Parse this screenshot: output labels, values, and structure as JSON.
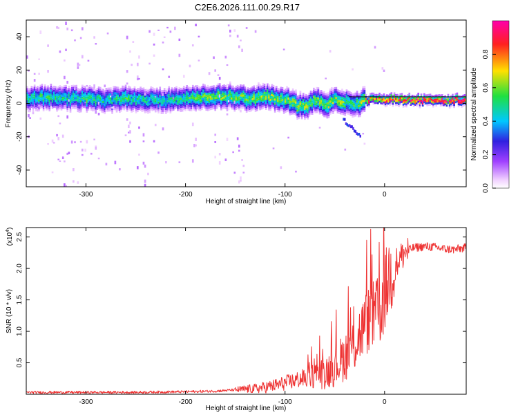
{
  "figure_title": "C2E6.2026.111.00.29.R17",
  "chart_data": [
    {
      "type": "heatmap",
      "title": "",
      "xlabel": "Height of straight line (km)",
      "ylabel": "Frequency (Hz)",
      "xlim": [
        -360,
        82
      ],
      "ylim": [
        -50,
        50
      ],
      "x_ticks": [
        -300,
        -200,
        -100,
        0
      ],
      "x_tick_labels": [
        "-300",
        "-200",
        "-100",
        "0"
      ],
      "y_ticks": [
        -40,
        -20,
        0,
        20,
        40
      ],
      "y_tick_labels": [
        "-40",
        "-20",
        "0",
        "20",
        "40"
      ],
      "colorbar": {
        "label": "Normalized spectral amplitude",
        "range": [
          0.0,
          1.0
        ],
        "ticks": [
          0.0,
          0.2,
          0.4,
          0.6,
          0.8
        ],
        "tick_labels": [
          "0.0",
          "0.2",
          "0.4",
          "0.6",
          "0.8"
        ],
        "colormap": [
          "#ffffff",
          "#f0d0ff",
          "#a040ff",
          "#3020e0",
          "#00c8ff",
          "#20e040",
          "#ffe000",
          "#ff2020",
          "#ff00aa"
        ]
      },
      "ridge_x": [
        -360,
        -340,
        -320,
        -300,
        -280,
        -260,
        -240,
        -220,
        -200,
        -180,
        -160,
        -140,
        -120,
        -110,
        -100,
        -90,
        -80,
        -70,
        -60,
        -50,
        -40,
        -30,
        -20,
        -10,
        0,
        5,
        10,
        20,
        40,
        60,
        82
      ],
      "ridge_freq": [
        3,
        4,
        3,
        3,
        2,
        3,
        2,
        2,
        3,
        4,
        4,
        3,
        4,
        3,
        2,
        -1,
        -2,
        3,
        -2,
        2,
        1,
        -1,
        2,
        2,
        2,
        4,
        2,
        2,
        2,
        2,
        2
      ],
      "ridge_amplitude": [
        0.45,
        0.5,
        0.45,
        0.5,
        0.45,
        0.5,
        0.45,
        0.45,
        0.5,
        0.55,
        0.55,
        0.55,
        0.6,
        0.55,
        0.55,
        0.6,
        0.6,
        0.55,
        0.6,
        0.6,
        0.55,
        0.5,
        0.7,
        0.75,
        0.8,
        0.8,
        0.85,
        0.85,
        0.85,
        0.85,
        0.85
      ]
    },
    {
      "type": "line",
      "title": "",
      "xlabel": "Height of straight line (km)",
      "ylabel": "SNR (10 * v/v)",
      "multiplier_label": "(x10",
      "multiplier_exponent": "4",
      "xlim": [
        -360,
        82
      ],
      "ylim": [
        0,
        2.65
      ],
      "x_ticks": [
        -300,
        -200,
        -100,
        0
      ],
      "x_tick_labels": [
        "-300",
        "-200",
        "-100",
        "0"
      ],
      "y_ticks": [
        0.5,
        1.0,
        1.5,
        2.0,
        2.5
      ],
      "y_tick_labels": [
        "0.5",
        "1.0",
        "1.5",
        "2.0",
        "2.5"
      ],
      "series": [
        {
          "name": "SNR",
          "color": "#ee3333",
          "x": [
            -360,
            -300,
            -250,
            -200,
            -170,
            -150,
            -130,
            -120,
            -110,
            -100,
            -90,
            -80,
            -70,
            -60,
            -50,
            -40,
            -30,
            -25,
            -20,
            -15,
            -10,
            -5,
            0,
            5,
            10,
            15,
            20,
            25,
            30,
            40,
            50,
            60,
            70,
            82
          ],
          "y": [
            0.03,
            0.03,
            0.03,
            0.04,
            0.05,
            0.07,
            0.09,
            0.11,
            0.14,
            0.18,
            0.22,
            0.26,
            0.3,
            0.35,
            0.45,
            0.6,
            0.8,
            0.95,
            1.1,
            1.2,
            1.25,
            1.3,
            1.6,
            1.9,
            2.05,
            2.15,
            2.25,
            2.3,
            2.33,
            2.35,
            2.34,
            2.31,
            2.3,
            2.33
          ]
        }
      ]
    }
  ]
}
